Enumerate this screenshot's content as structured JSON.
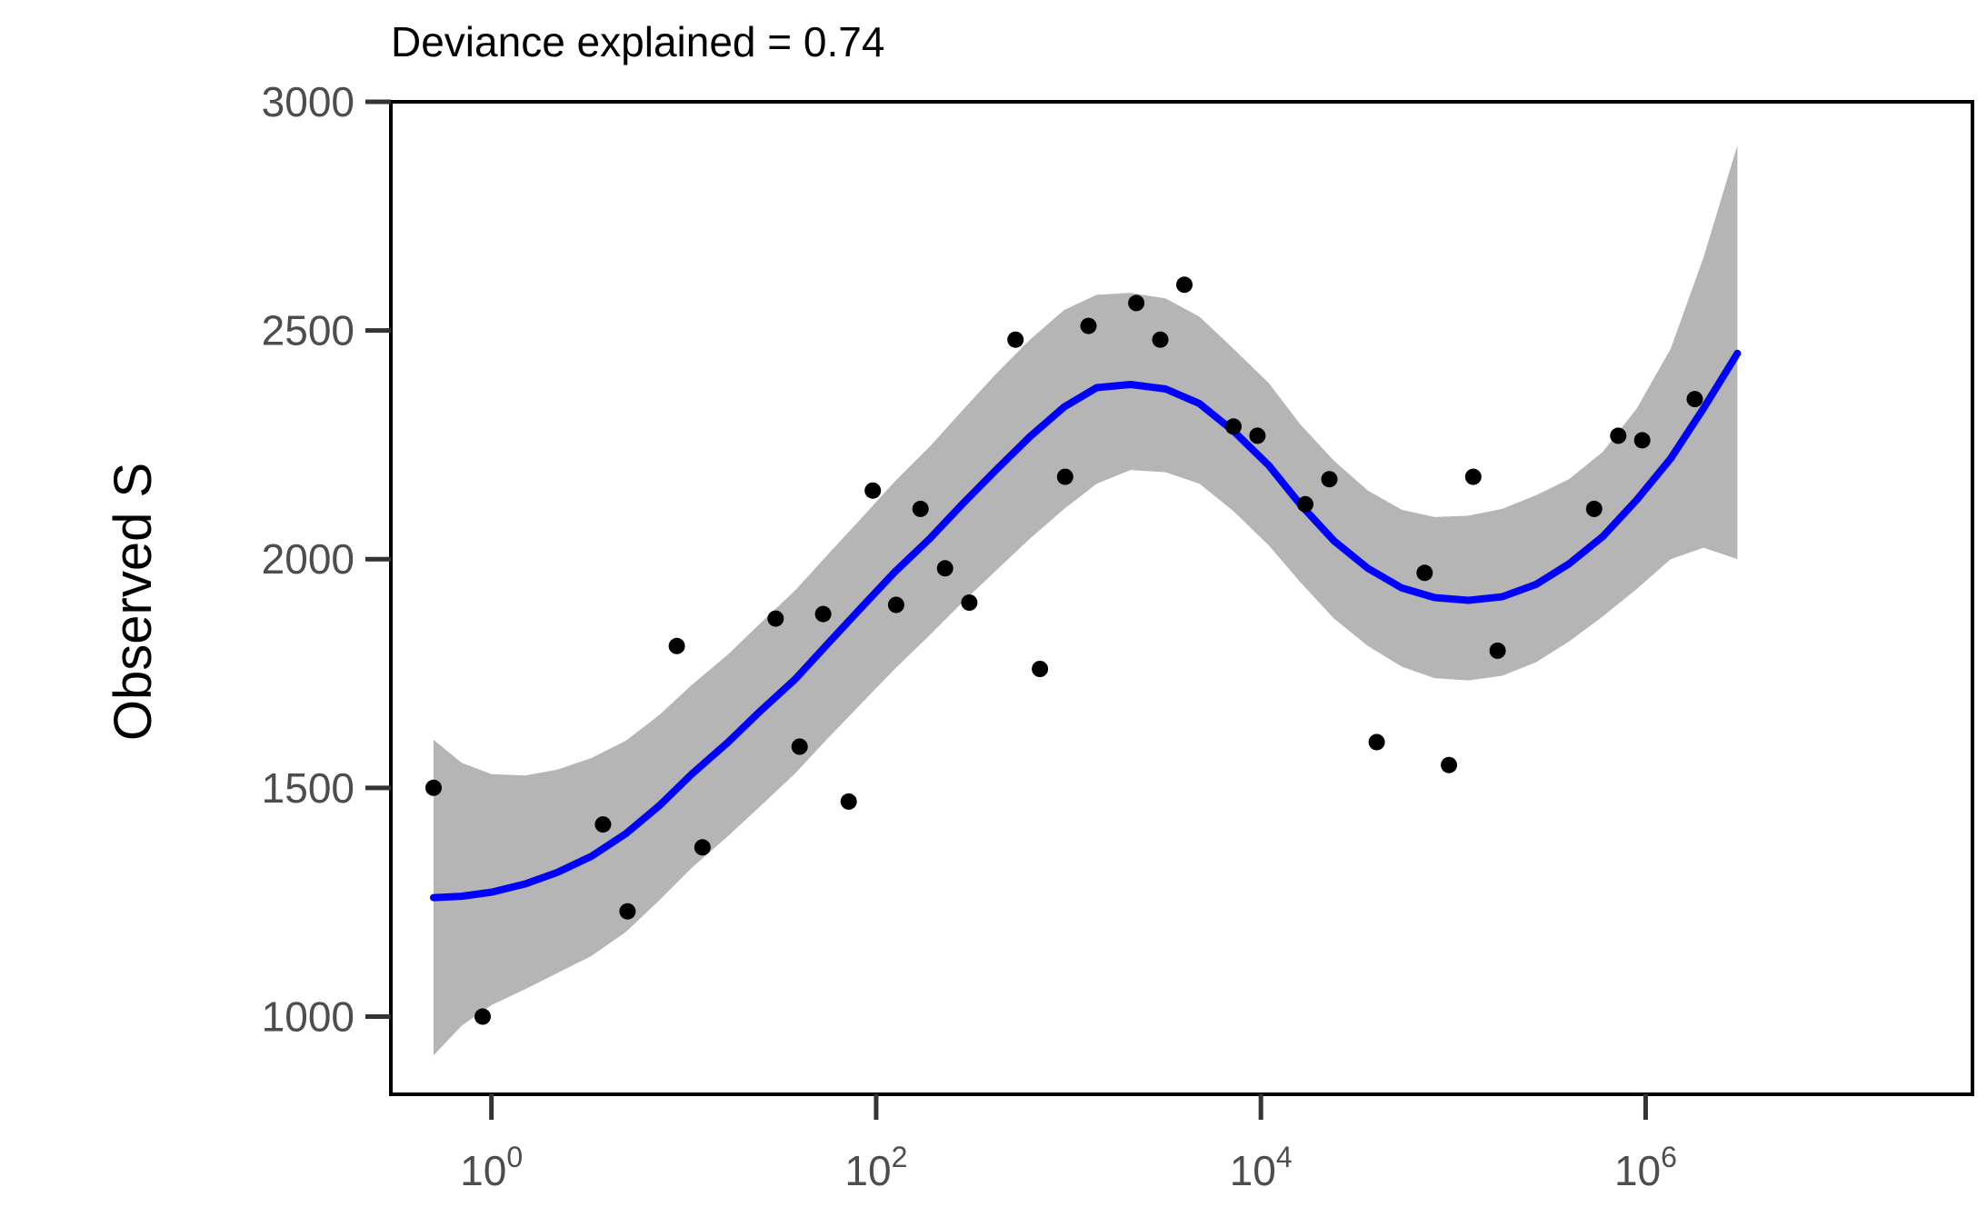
{
  "chart_data": {
    "type": "scatter",
    "title": "Deviance explained = 0.74",
    "xlabel": "",
    "ylabel": "Observed S",
    "x_scale": "log10",
    "xlim": [
      0.3,
      50000000
    ],
    "ylim": [
      830,
      3000
    ],
    "grid": false,
    "legend": "none",
    "y_ticks": [
      1000,
      1500,
      2000,
      2500,
      3000
    ],
    "x_ticks": [
      {
        "value": 1,
        "base": "10",
        "exp": "0"
      },
      {
        "value": 100,
        "base": "10",
        "exp": "2"
      },
      {
        "value": 10000,
        "base": "10",
        "exp": "4"
      },
      {
        "value": 1000000,
        "base": "10",
        "exp": "6"
      }
    ],
    "points": [
      {
        "x": 0.5,
        "y": 1500
      },
      {
        "x": 0.9,
        "y": 1000
      },
      {
        "x": 3.8,
        "y": 1420
      },
      {
        "x": 5.1,
        "y": 1230
      },
      {
        "x": 9.2,
        "y": 1810
      },
      {
        "x": 12.5,
        "y": 1370
      },
      {
        "x": 30,
        "y": 1870
      },
      {
        "x": 40,
        "y": 1590
      },
      {
        "x": 53,
        "y": 1880
      },
      {
        "x": 72,
        "y": 1470
      },
      {
        "x": 96,
        "y": 2150
      },
      {
        "x": 127,
        "y": 1900
      },
      {
        "x": 170,
        "y": 2110
      },
      {
        "x": 228,
        "y": 1980
      },
      {
        "x": 305,
        "y": 1905
      },
      {
        "x": 530,
        "y": 2480
      },
      {
        "x": 710,
        "y": 1760
      },
      {
        "x": 960,
        "y": 2180
      },
      {
        "x": 1270,
        "y": 2510
      },
      {
        "x": 2250,
        "y": 2560
      },
      {
        "x": 3000,
        "y": 2480
      },
      {
        "x": 4000,
        "y": 2600
      },
      {
        "x": 7200,
        "y": 2290
      },
      {
        "x": 9600,
        "y": 2270
      },
      {
        "x": 17000,
        "y": 2120
      },
      {
        "x": 22700,
        "y": 2175
      },
      {
        "x": 40000,
        "y": 1600
      },
      {
        "x": 71000,
        "y": 1970
      },
      {
        "x": 95000,
        "y": 1550
      },
      {
        "x": 127000,
        "y": 2180
      },
      {
        "x": 170000,
        "y": 1800
      },
      {
        "x": 540000,
        "y": 2110
      },
      {
        "x": 720000,
        "y": 2270
      },
      {
        "x": 960000,
        "y": 2260
      },
      {
        "x": 1800000,
        "y": 2350
      }
    ],
    "smooth": {
      "color": "#0000ff",
      "ribbon_color": "#b5b5b5",
      "x": [
        0.5,
        0.7,
        1.0,
        1.5,
        2.2,
        3.3,
        5.0,
        7.5,
        11,
        17,
        25,
        38,
        56,
        84,
        125,
        190,
        280,
        420,
        630,
        950,
        1400,
        2100,
        3200,
        4800,
        7200,
        11000,
        16000,
        24000,
        36000,
        54000,
        80000,
        120000,
        180000,
        270000,
        400000,
        600000,
        900000,
        1350000,
        2000000,
        3000000
      ],
      "y": [
        1260,
        1263,
        1272,
        1290,
        1315,
        1350,
        1400,
        1462,
        1530,
        1600,
        1668,
        1738,
        1815,
        1895,
        1972,
        2045,
        2120,
        2195,
        2268,
        2333,
        2375,
        2382,
        2372,
        2340,
        2280,
        2205,
        2120,
        2040,
        1980,
        1937,
        1916,
        1910,
        1918,
        1945,
        1990,
        2050,
        2130,
        2220,
        2330,
        2450
      ],
      "lower": [
        915,
        980,
        1025,
        1060,
        1095,
        1132,
        1185,
        1255,
        1325,
        1395,
        1460,
        1532,
        1608,
        1685,
        1760,
        1834,
        1905,
        1975,
        2045,
        2110,
        2165,
        2195,
        2190,
        2165,
        2105,
        2030,
        1950,
        1870,
        1810,
        1765,
        1740,
        1735,
        1745,
        1775,
        1820,
        1875,
        1935,
        2000,
        2025,
        2000
      ],
      "upper": [
        1605,
        1555,
        1530,
        1527,
        1540,
        1565,
        1603,
        1660,
        1725,
        1792,
        1860,
        1932,
        2010,
        2090,
        2170,
        2246,
        2325,
        2405,
        2480,
        2545,
        2578,
        2582,
        2570,
        2530,
        2460,
        2385,
        2295,
        2215,
        2150,
        2108,
        2092,
        2095,
        2110,
        2140,
        2175,
        2235,
        2330,
        2460,
        2660,
        2905
      ]
    }
  }
}
